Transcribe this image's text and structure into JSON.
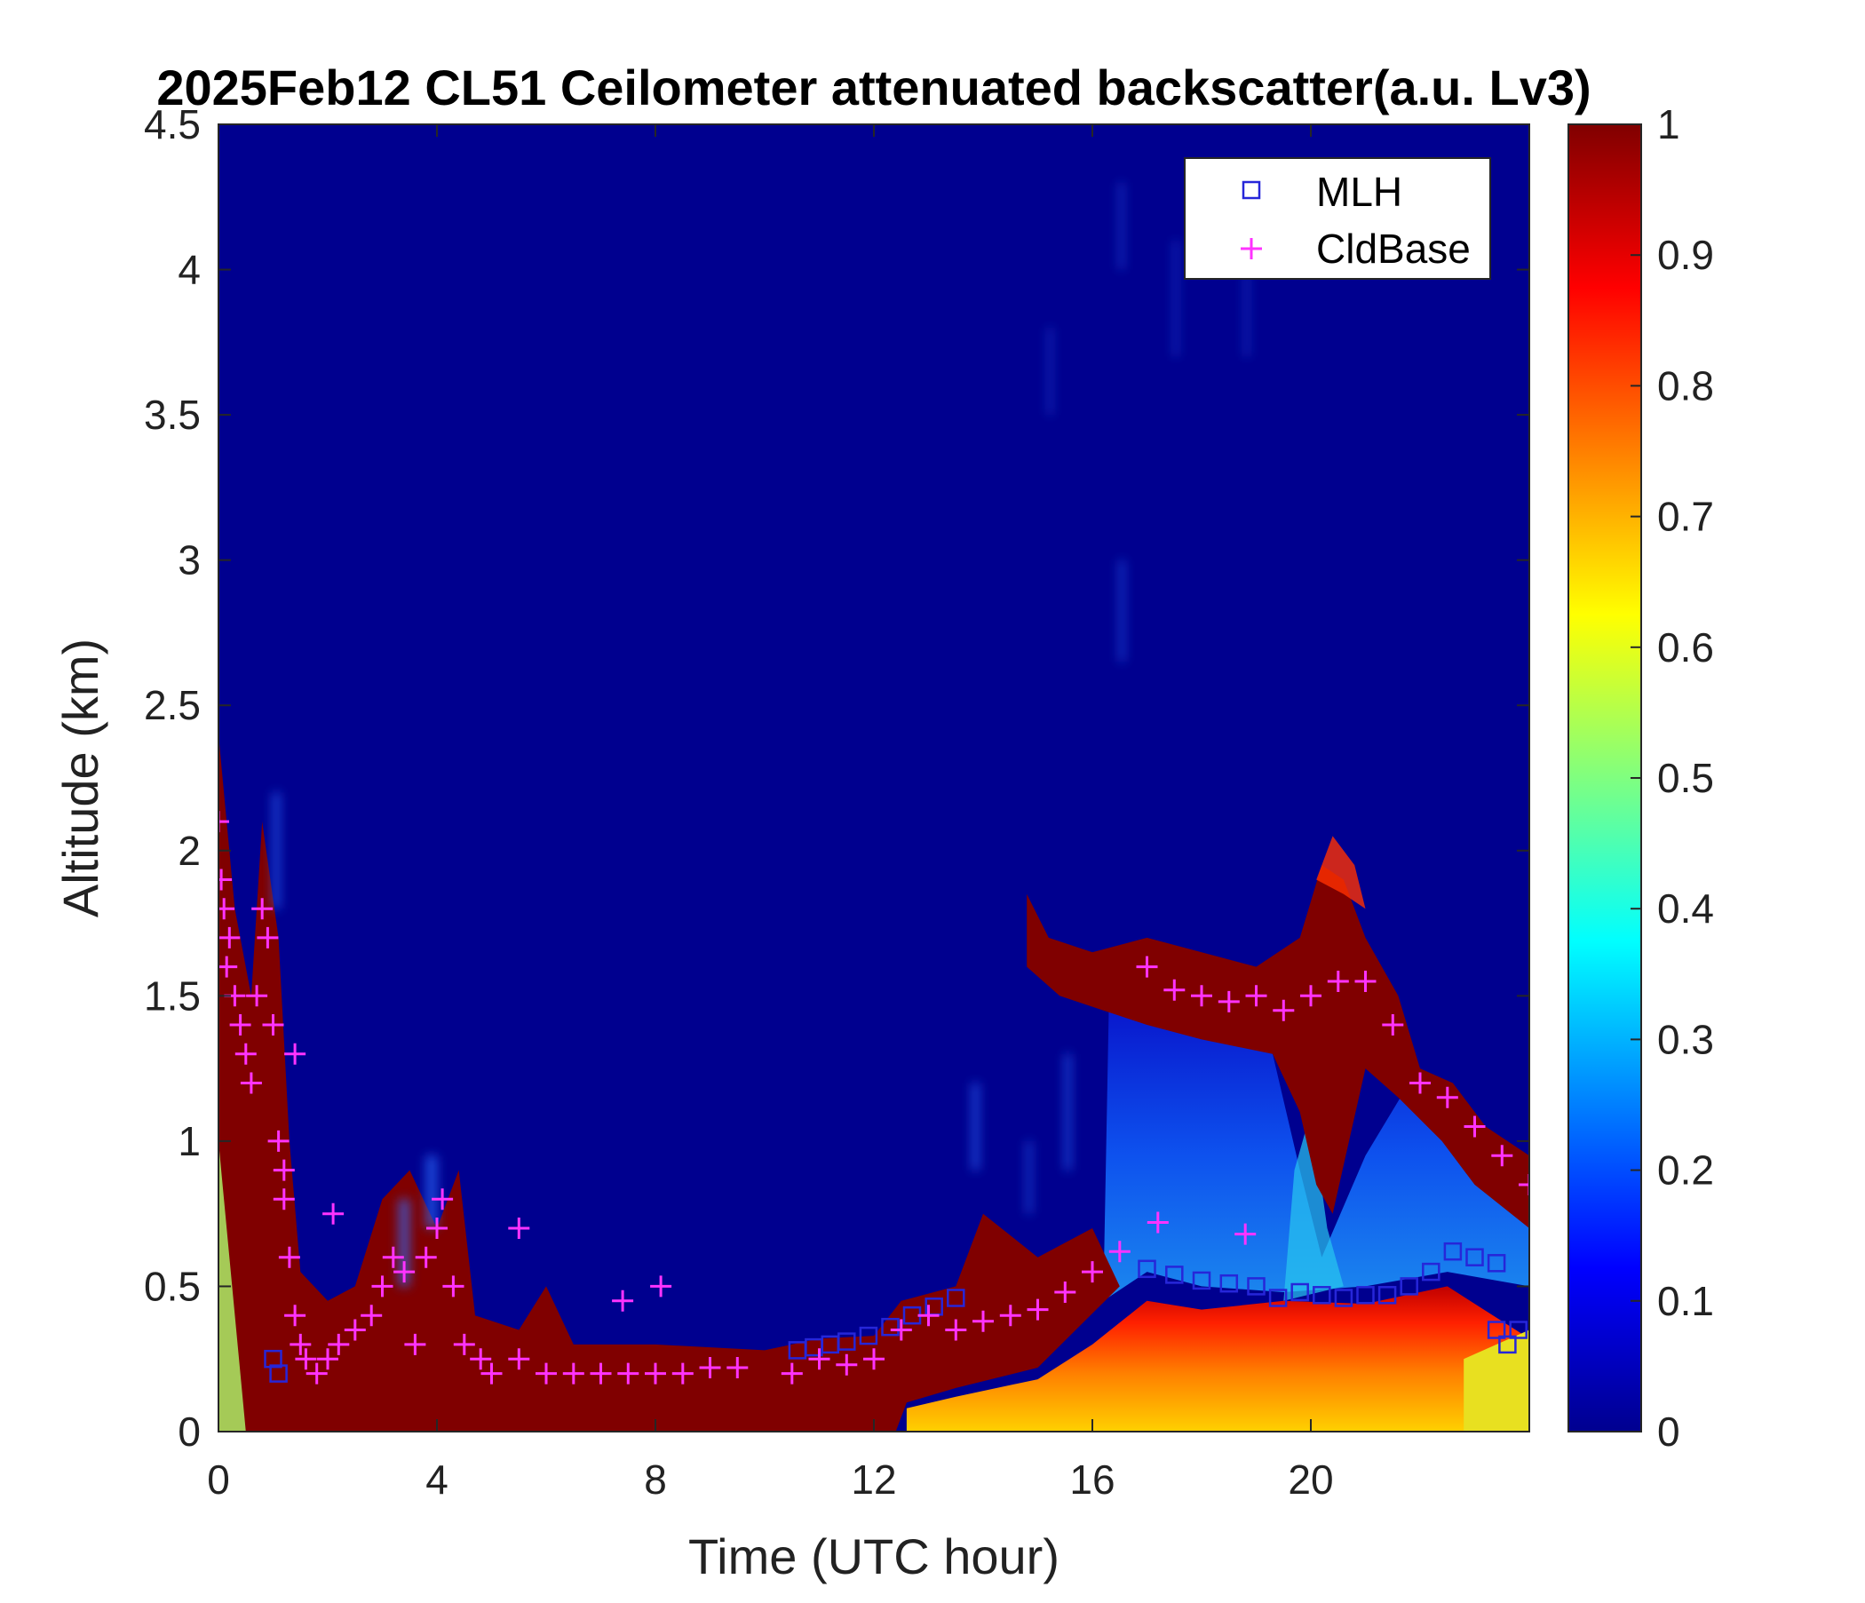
{
  "chart_data": {
    "type": "heatmap",
    "title": "2025Feb12 CL51 Ceilometer attenuated backscatter(a.u. Lv3)",
    "xlabel": "Time (UTC hour)",
    "ylabel": "Altitude (km)",
    "xlim": [
      0,
      24
    ],
    "ylim": [
      0,
      4.5
    ],
    "x_ticks": [
      0,
      4,
      8,
      12,
      16,
      20
    ],
    "x_tick_labels": [
      "0",
      "4",
      "8",
      "12",
      "16",
      "20"
    ],
    "y_ticks": [
      0,
      0.5,
      1,
      1.5,
      2,
      2.5,
      3,
      3.5,
      4,
      4.5
    ],
    "y_tick_labels": [
      "0",
      "0.5",
      "1",
      "1.5",
      "2",
      "2.5",
      "3",
      "3.5",
      "4",
      "4.5"
    ],
    "colorbar": {
      "colormap": "jet",
      "range": [
        0,
        1
      ],
      "ticks": [
        0,
        0.1,
        0.2,
        0.3,
        0.4,
        0.5,
        0.6,
        0.7,
        0.8,
        0.9,
        1
      ],
      "tick_labels": [
        "0",
        "0.1",
        "0.2",
        "0.3",
        "0.4",
        "0.5",
        "0.6",
        "0.7",
        "0.8",
        "0.9",
        "1"
      ]
    },
    "legend": {
      "placement": "top-right",
      "entries": [
        {
          "label": "MLH",
          "marker": "square",
          "color": "#2626d9"
        },
        {
          "label": "CldBase",
          "marker": "plus",
          "color": "#ff33ff"
        }
      ]
    },
    "colors": {
      "background_low": "#00008f",
      "saturated": "#800000",
      "mlh_marker": "#2626d9",
      "cldbase_marker": "#ff33ff"
    },
    "series": [
      {
        "name": "MLH",
        "marker": "square",
        "x": [
          1.0,
          1.1,
          10.6,
          10.9,
          11.2,
          11.5,
          11.9,
          12.3,
          12.7,
          13.1,
          13.5,
          17.0,
          17.5,
          18.0,
          18.5,
          19.0,
          19.4,
          19.8,
          20.2,
          20.6,
          21.0,
          21.4,
          21.8,
          22.2,
          22.6,
          23.0,
          23.4,
          23.4,
          23.6,
          23.8
        ],
        "y": [
          0.25,
          0.2,
          0.28,
          0.29,
          0.3,
          0.31,
          0.33,
          0.36,
          0.4,
          0.43,
          0.46,
          0.56,
          0.54,
          0.52,
          0.51,
          0.5,
          0.46,
          0.48,
          0.47,
          0.46,
          0.47,
          0.47,
          0.5,
          0.55,
          0.62,
          0.6,
          0.58,
          0.35,
          0.3,
          0.35
        ]
      },
      {
        "name": "CldBase",
        "marker": "plus",
        "x": [
          0.0,
          0.05,
          0.1,
          0.15,
          0.2,
          0.3,
          0.4,
          0.5,
          0.6,
          0.7,
          0.8,
          0.9,
          1.0,
          1.1,
          1.2,
          1.3,
          1.4,
          1.5,
          1.6,
          1.8,
          2.0,
          2.2,
          2.5,
          2.8,
          3.0,
          3.2,
          3.4,
          3.6,
          3.8,
          4.0,
          4.1,
          4.3,
          4.5,
          4.8,
          5.0,
          5.5,
          5.5,
          6.0,
          6.5,
          7.0,
          7.5,
          7.4,
          8.0,
          8.1,
          8.5,
          9.0,
          9.5,
          10.5,
          11.0,
          11.5,
          12.0,
          12.5,
          13.0,
          13.5,
          14.0,
          14.5,
          15.0,
          15.5,
          16.0,
          16.5,
          17.0,
          17.5,
          18.0,
          18.5,
          19.0,
          19.5,
          20.0,
          20.5,
          21.0,
          21.5,
          22.0,
          22.5,
          23.0,
          23.5,
          24.0,
          1.2,
          2.1,
          1.4,
          17.2,
          18.8
        ],
        "y": [
          2.1,
          1.9,
          1.8,
          1.6,
          1.7,
          1.5,
          1.4,
          1.3,
          1.2,
          1.5,
          1.8,
          1.7,
          1.4,
          1.0,
          0.8,
          0.6,
          0.4,
          0.3,
          0.25,
          0.2,
          0.25,
          0.3,
          0.35,
          0.4,
          0.5,
          0.6,
          0.55,
          0.3,
          0.6,
          0.7,
          0.8,
          0.5,
          0.3,
          0.25,
          0.2,
          0.7,
          0.25,
          0.2,
          0.2,
          0.2,
          0.2,
          0.45,
          0.2,
          0.5,
          0.2,
          0.22,
          0.22,
          0.2,
          0.25,
          0.23,
          0.25,
          0.35,
          0.4,
          0.35,
          0.38,
          0.4,
          0.42,
          0.48,
          0.55,
          0.62,
          1.6,
          1.52,
          1.5,
          1.48,
          1.5,
          1.45,
          1.5,
          1.55,
          1.55,
          1.4,
          1.2,
          1.15,
          1.05,
          0.95,
          0.85,
          0.9,
          0.75,
          1.3,
          0.72,
          0.68
        ]
      }
    ]
  }
}
